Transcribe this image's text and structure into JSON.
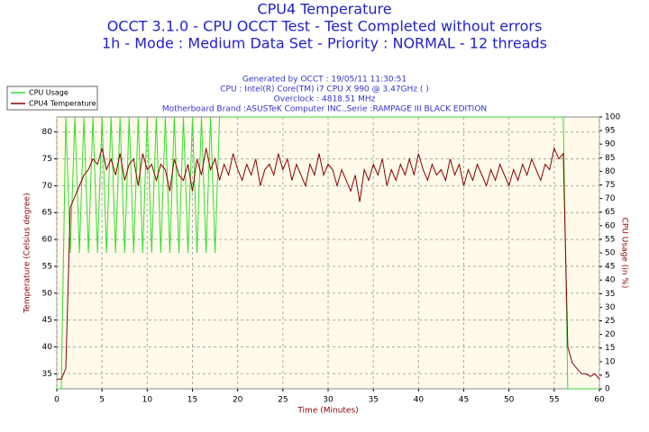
{
  "chart_data": {
    "type": "line",
    "title": "CPU4 Temperature",
    "subtitle": [
      "OCCT 3.1.0 - CPU OCCT Test - Test Completed without errors",
      "1h - Mode : Medium Data Set - Priority : NORMAL - 12 threads"
    ],
    "info": [
      "Generated by OCCT : 19/05/11 11:30:51",
      "CPU : Intel(R) Core(TM) i7 CPU X 990 @ 3.47GHz (  )",
      "Overclock : 4818.51 MHz",
      "Motherboard Brand :ASUSTeK Computer INC.,Serie :RAMPAGE III BLACK EDITION"
    ],
    "xlabel": "Time (Minutes)",
    "ylabel": "Temperature (Celsius degree)",
    "y2label": "CPU Usage (in %)",
    "xlim": [
      0,
      60
    ],
    "xticks": [
      0,
      5,
      10,
      15,
      20,
      25,
      30,
      35,
      40,
      45,
      50,
      55,
      60
    ],
    "ylim": [
      32.2,
      82.8
    ],
    "yticks": [
      35,
      40,
      45,
      50,
      55,
      60,
      65,
      70,
      75,
      80
    ],
    "y2lim": [
      0,
      100
    ],
    "y2ticks": [
      0,
      5,
      10,
      15,
      20,
      25,
      30,
      35,
      40,
      45,
      50,
      55,
      60,
      65,
      70,
      75,
      80,
      85,
      90,
      95,
      100
    ],
    "grid": true,
    "legend": "upper left",
    "x": [
      0,
      0.5,
      1,
      1.5,
      2,
      2.5,
      3,
      3.5,
      4,
      4.5,
      5,
      5.5,
      6,
      6.5,
      7,
      7.5,
      8,
      8.5,
      9,
      9.5,
      10,
      10.5,
      11,
      11.5,
      12,
      12.5,
      13,
      13.5,
      14,
      14.5,
      15,
      15.5,
      16,
      16.5,
      17,
      17.5,
      18,
      18.5,
      19,
      19.5,
      20,
      20.5,
      21,
      21.5,
      22,
      22.5,
      23,
      23.5,
      24,
      24.5,
      25,
      25.5,
      26,
      26.5,
      27,
      27.5,
      28,
      28.5,
      29,
      29.5,
      30,
      30.5,
      31,
      31.5,
      32,
      32.5,
      33,
      33.5,
      34,
      34.5,
      35,
      35.5,
      36,
      36.5,
      37,
      37.5,
      38,
      38.5,
      39,
      39.5,
      40,
      40.5,
      41,
      41.5,
      42,
      42.5,
      43,
      43.5,
      44,
      44.5,
      45,
      45.5,
      46,
      46.5,
      47,
      47.5,
      48,
      48.5,
      49,
      49.5,
      50,
      50.5,
      51,
      51.5,
      52,
      52.5,
      53,
      53.5,
      54,
      54.5,
      55,
      55.5,
      56,
      56.5,
      57,
      57.5,
      58,
      58.5,
      59,
      59.5,
      60
    ],
    "series": [
      {
        "name": "CPU Usage",
        "color": "#33dd33",
        "axis": "y2",
        "values": [
          0,
          0,
          100,
          50,
          100,
          50,
          100,
          50,
          100,
          50,
          100,
          50,
          100,
          50,
          100,
          50,
          100,
          50,
          100,
          50,
          100,
          50,
          100,
          50,
          100,
          50,
          100,
          50,
          100,
          50,
          100,
          50,
          100,
          50,
          100,
          50,
          100,
          100,
          100,
          100,
          100,
          100,
          100,
          100,
          100,
          100,
          100,
          100,
          100,
          100,
          100,
          100,
          100,
          100,
          100,
          100,
          100,
          100,
          100,
          100,
          100,
          100,
          100,
          100,
          100,
          100,
          100,
          100,
          100,
          100,
          100,
          100,
          100,
          100,
          100,
          100,
          100,
          100,
          100,
          100,
          100,
          100,
          100,
          100,
          100,
          100,
          100,
          100,
          100,
          100,
          100,
          100,
          100,
          100,
          100,
          100,
          100,
          100,
          100,
          100,
          100,
          100,
          100,
          100,
          100,
          100,
          100,
          100,
          100,
          100,
          100,
          100,
          100,
          0,
          0,
          0,
          0,
          0,
          0,
          0,
          0
        ]
      },
      {
        "name": "CPU4 Temperature",
        "color": "#8b0000",
        "values": [
          34,
          34,
          36,
          66,
          68,
          70,
          72,
          73,
          75,
          74,
          77,
          73,
          75,
          72,
          76,
          71,
          74,
          75,
          70,
          76,
          73,
          74,
          71,
          74,
          73,
          69,
          75,
          72,
          71,
          74,
          69,
          75,
          72,
          77,
          73,
          75,
          71,
          74,
          72,
          76,
          73,
          71,
          74,
          72,
          75,
          70,
          73,
          74,
          72,
          76,
          73,
          75,
          71,
          74,
          72,
          70,
          74,
          72,
          76,
          72,
          74,
          73,
          70,
          73,
          71,
          69,
          72,
          67,
          73,
          71,
          74,
          72,
          75,
          70,
          73,
          71,
          74,
          72,
          75,
          72,
          76,
          73,
          71,
          74,
          72,
          73,
          71,
          75,
          72,
          74,
          70,
          73,
          71,
          74,
          72,
          70,
          73,
          71,
          74,
          72,
          70,
          73,
          71,
          74,
          72,
          75,
          73,
          71,
          74,
          73,
          77,
          75,
          76,
          40,
          37,
          36,
          35,
          35,
          34.5,
          35,
          34
        ]
      }
    ]
  }
}
